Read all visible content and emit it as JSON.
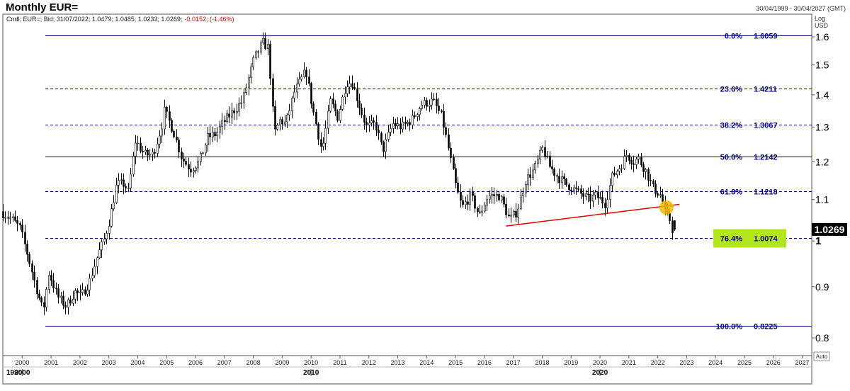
{
  "header": {
    "title": "Monthly EUR=",
    "date_range": "30/04/1999 - 30/04/2027 (GMT)",
    "series_info_prefix": "Cndl; EUR=; Bid; 31/07/2022; 1.0479; 1.0485; 1.0233; 1.0269;",
    "series_info_change": "-0.0152; (-1.46%)"
  },
  "axis": {
    "scale_label_1": "Log",
    "scale_label_2": "USD",
    "auto_label": "Auto",
    "last_price_label": "1.0269"
  },
  "colors": {
    "fib_line": "#000080",
    "trendline": "#e00000",
    "highlight_circle": "#f5b800",
    "highlight_box": "#b4e61e",
    "candle": "#000000",
    "price_tag_bg": "#000000",
    "change_text": "#d00000"
  },
  "chart_data": {
    "type": "candlestick",
    "title": "Monthly EUR=",
    "y_scale": "log",
    "ylim": [
      0.78,
      1.66
    ],
    "y_ticks": [
      0.8,
      0.9,
      1,
      1.1,
      1.2,
      1.3,
      1.4,
      1.5,
      1.6
    ],
    "y_tick_labels": [
      "0.8",
      "0.9",
      "1",
      "1.1",
      "1.2",
      "1.3",
      "1.4",
      "1.5",
      "1.6"
    ],
    "x_range": [
      1999.33,
      2027.33
    ],
    "x_ticks": [
      2000,
      2001,
      2002,
      2003,
      2004,
      2005,
      2006,
      2007,
      2008,
      2009,
      2010,
      2011,
      2012,
      2013,
      2014,
      2015,
      2016,
      2017,
      2018,
      2019,
      2020,
      2021,
      2022,
      2023,
      2024,
      2025,
      2026,
      2027
    ],
    "x_decade_labels": [
      {
        "year": 1999.33,
        "label": "1990"
      },
      {
        "year": 2000,
        "label": "2000"
      },
      {
        "year": 2010,
        "label": "2010"
      },
      {
        "year": 2020,
        "label": "2020"
      }
    ],
    "fibonacci_levels": [
      {
        "label": "0.0%",
        "value": 1.6059,
        "value_label": "1.6059",
        "style": "solid"
      },
      {
        "label": "23.6%",
        "value": 1.4211,
        "value_label": "1.4211",
        "style": "dashed"
      },
      {
        "label": "38.2%",
        "value": 1.3067,
        "value_label": "1.3067",
        "style": "dashed"
      },
      {
        "label": "50.0%",
        "value": 1.2142,
        "value_label": "1.2142",
        "style": "solid"
      },
      {
        "label": "61.8%",
        "value": 1.1218,
        "value_label": "1.1218",
        "style": "dashed"
      },
      {
        "label": "76.4%",
        "value": 1.0074,
        "value_label": "1.0074",
        "style": "dashed",
        "highlight": true
      },
      {
        "label": "100.0%",
        "value": 0.8225,
        "value_label": "0.8225",
        "style": "solid"
      }
    ],
    "fib_start_x": 2000.8,
    "trendline": {
      "x1": 2016.75,
      "y1": 1.035,
      "x2": 2022.75,
      "y2": 1.088
    },
    "highlight_point": {
      "x": 2022.3,
      "y": 1.08
    },
    "last_price": 1.0269,
    "last_bar": {
      "date": "31/07/2022",
      "open": 1.0479,
      "high": 1.0485,
      "low": 1.0233,
      "close": 1.0269
    },
    "path_anchors": [
      [
        1999.33,
        1.07
      ],
      [
        1999.75,
        1.05
      ],
      [
        2000.0,
        1.03
      ],
      [
        2000.3,
        0.96
      ],
      [
        2000.55,
        0.9
      ],
      [
        2000.8,
        0.85
      ],
      [
        2001.0,
        0.93
      ],
      [
        2001.3,
        0.88
      ],
      [
        2001.6,
        0.86
      ],
      [
        2001.9,
        0.89
      ],
      [
        2002.1,
        0.88
      ],
      [
        2002.4,
        0.91
      ],
      [
        2002.7,
        0.97
      ],
      [
        2002.9,
        1.0
      ],
      [
        2003.1,
        1.05
      ],
      [
        2003.35,
        1.14
      ],
      [
        2003.6,
        1.14
      ],
      [
        2003.75,
        1.12
      ],
      [
        2004.0,
        1.26
      ],
      [
        2004.3,
        1.22
      ],
      [
        2004.6,
        1.22
      ],
      [
        2004.9,
        1.3
      ],
      [
        2005.0,
        1.35
      ],
      [
        2005.3,
        1.29
      ],
      [
        2005.6,
        1.21
      ],
      [
        2005.9,
        1.18
      ],
      [
        2006.2,
        1.2
      ],
      [
        2006.5,
        1.27
      ],
      [
        2006.8,
        1.28
      ],
      [
        2007.0,
        1.31
      ],
      [
        2007.4,
        1.35
      ],
      [
        2007.7,
        1.38
      ],
      [
        2007.9,
        1.45
      ],
      [
        2008.1,
        1.52
      ],
      [
        2008.4,
        1.58
      ],
      [
        2008.6,
        1.56
      ],
      [
        2008.8,
        1.28
      ],
      [
        2009.0,
        1.32
      ],
      [
        2009.2,
        1.31
      ],
      [
        2009.5,
        1.41
      ],
      [
        2009.9,
        1.48
      ],
      [
        2010.1,
        1.37
      ],
      [
        2010.45,
        1.23
      ],
      [
        2010.75,
        1.38
      ],
      [
        2011.0,
        1.33
      ],
      [
        2011.3,
        1.44
      ],
      [
        2011.5,
        1.44
      ],
      [
        2011.8,
        1.35
      ],
      [
        2012.0,
        1.3
      ],
      [
        2012.3,
        1.31
      ],
      [
        2012.55,
        1.23
      ],
      [
        2012.9,
        1.31
      ],
      [
        2013.2,
        1.3
      ],
      [
        2013.55,
        1.32
      ],
      [
        2013.9,
        1.37
      ],
      [
        2014.3,
        1.38
      ],
      [
        2014.6,
        1.33
      ],
      [
        2014.8,
        1.25
      ],
      [
        2015.1,
        1.13
      ],
      [
        2015.3,
        1.08
      ],
      [
        2015.6,
        1.11
      ],
      [
        2015.9,
        1.06
      ],
      [
        2016.2,
        1.11
      ],
      [
        2016.6,
        1.11
      ],
      [
        2016.95,
        1.05
      ],
      [
        2017.2,
        1.07
      ],
      [
        2017.5,
        1.15
      ],
      [
        2017.8,
        1.18
      ],
      [
        2018.1,
        1.24
      ],
      [
        2018.3,
        1.19
      ],
      [
        2018.6,
        1.16
      ],
      [
        2018.9,
        1.14
      ],
      [
        2019.3,
        1.12
      ],
      [
        2019.7,
        1.1
      ],
      [
        2019.9,
        1.11
      ],
      [
        2020.1,
        1.1
      ],
      [
        2020.25,
        1.09
      ],
      [
        2020.5,
        1.16
      ],
      [
        2020.8,
        1.19
      ],
      [
        2021.0,
        1.22
      ],
      [
        2021.25,
        1.2
      ],
      [
        2021.4,
        1.21
      ],
      [
        2021.7,
        1.17
      ],
      [
        2021.9,
        1.13
      ],
      [
        2022.2,
        1.11
      ],
      [
        2022.35,
        1.06
      ],
      [
        2022.5,
        1.05
      ],
      [
        2022.58,
        1.027
      ]
    ]
  }
}
